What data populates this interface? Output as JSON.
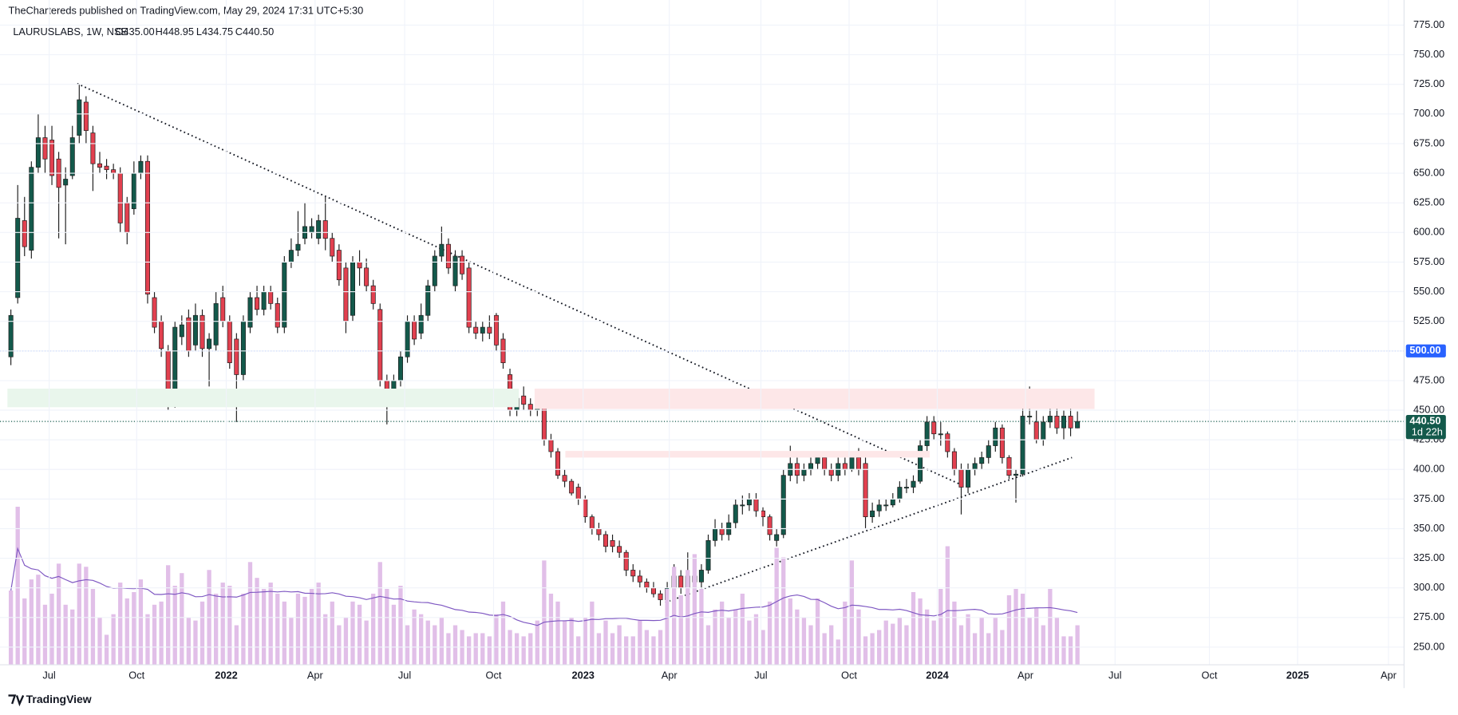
{
  "header": {
    "publisher": "TheChartereds published on TradingView.com, May 29, 2024 17:31 UTC+5:30",
    "symbol": "LAURUSLABS, 1W, NSE",
    "ohlc_labels": [
      "O435.00",
      "H448.95",
      "L434.75",
      "C440.50"
    ],
    "footer": "TradingView"
  },
  "chart_data": {
    "type": "candlestick",
    "xlim": [
      -0.5,
      203.5
    ],
    "xticks": [
      {
        "value": 5.6,
        "label": "Jul"
      },
      {
        "value": 18.4,
        "label": "Oct"
      },
      {
        "value": 31.5,
        "label": "2022"
      },
      {
        "value": 44.5,
        "label": "Apr"
      },
      {
        "value": 57.6,
        "label": "Jul"
      },
      {
        "value": 70.6,
        "label": "Oct"
      },
      {
        "value": 83.7,
        "label": "2023"
      },
      {
        "value": 96.3,
        "label": "Apr"
      },
      {
        "value": 109.7,
        "label": "Jul"
      },
      {
        "value": 122.6,
        "label": "Oct"
      },
      {
        "value": 135.5,
        "label": "2024"
      },
      {
        "value": 148.4,
        "label": "Apr"
      },
      {
        "value": 161.5,
        "label": "Jul"
      },
      {
        "value": 175.3,
        "label": "Oct"
      },
      {
        "value": 188.2,
        "label": "2025"
      },
      {
        "value": 201.5,
        "label": "Apr"
      }
    ],
    "ylim": [
      235.1,
      796.2
    ],
    "yticks": [
      {
        "value": 250,
        "label": "250.00"
      },
      {
        "value": 275,
        "label": "275.00"
      },
      {
        "value": 300,
        "label": "300.00"
      },
      {
        "value": 325,
        "label": "325.00"
      },
      {
        "value": 350,
        "label": "350.00"
      },
      {
        "value": 375,
        "label": "375.00"
      },
      {
        "value": 400,
        "label": "400.00"
      },
      {
        "value": 425,
        "label": "425.00"
      },
      {
        "value": 450,
        "label": "450.00"
      },
      {
        "value": 475,
        "label": "475.00"
      },
      {
        "value": 500,
        "label": "500.00"
      },
      {
        "value": 525,
        "label": "525.00"
      },
      {
        "value": 550,
        "label": "550.00"
      },
      {
        "value": 575,
        "label": "575.00"
      },
      {
        "value": 600,
        "label": "600.00"
      },
      {
        "value": 625,
        "label": "625.00"
      },
      {
        "value": 650,
        "label": "650.00"
      },
      {
        "value": 675,
        "label": "675.00"
      },
      {
        "value": 700,
        "label": "700.00"
      },
      {
        "value": 725,
        "label": "725.00"
      },
      {
        "value": 750,
        "label": "750.00"
      },
      {
        "value": 775,
        "label": "775.00"
      }
    ],
    "grid": true,
    "up_color": "#13594b",
    "down_color": "#e2404f",
    "volume_color": "#e1bfe8",
    "volume_ma_color": "#7e57c2",
    "candles": {
      "open": [
        495,
        545,
        610,
        585,
        655,
        680,
        678,
        662,
        640,
        648,
        682,
        710,
        684,
        658,
        656,
        653,
        650,
        625,
        620,
        650,
        660,
        545,
        525,
        500,
        458,
        512,
        528,
        505,
        530,
        502,
        505,
        545,
        525,
        510,
        480,
        520,
        545,
        535,
        550,
        540,
        520,
        575,
        585,
        595,
        600,
        595,
        610,
        595,
        585,
        570,
        530,
        575,
        570,
        555,
        535,
        475,
        462,
        475,
        495,
        525,
        515,
        530,
        555,
        580,
        590,
        555,
        580,
        570,
        520,
        515,
        520,
        530,
        510,
        480,
        450,
        462,
        455,
        450,
        455,
        425,
        415,
        395,
        390,
        385,
        375,
        360,
        350,
        345,
        340,
        335,
        330,
        315,
        310,
        305,
        300,
        295,
        290,
        300,
        310,
        300,
        310,
        305,
        315,
        340,
        350,
        345,
        355,
        370,
        370,
        375,
        365,
        360,
        340,
        345,
        395,
        405,
        395,
        400,
        405,
        410,
        400,
        395,
        405,
        400,
        410,
        405,
        360,
        365,
        370,
        370,
        375,
        385,
        385,
        390,
        420,
        440,
        430,
        430,
        415,
        400,
        385,
        400,
        405,
        410,
        420,
        435,
        410,
        395,
        396,
        445,
        440,
        425,
        440,
        445,
        435,
        445,
        435
      ],
      "high": [
        535,
        640,
        630,
        660,
        700,
        690,
        690,
        668,
        655,
        690,
        725,
        715,
        690,
        668,
        662,
        658,
        655,
        630,
        660,
        665,
        665,
        550,
        530,
        505,
        525,
        530,
        535,
        540,
        535,
        515,
        550,
        555,
        530,
        515,
        530,
        550,
        555,
        555,
        555,
        545,
        580,
        595,
        618,
        625,
        612,
        615,
        630,
        600,
        590,
        575,
        580,
        585,
        578,
        560,
        540,
        480,
        480,
        500,
        530,
        530,
        540,
        560,
        585,
        605,
        595,
        585,
        585,
        575,
        525,
        525,
        530,
        532,
        515,
        485,
        465,
        470,
        460,
        460,
        458,
        430,
        418,
        400,
        392,
        388,
        378,
        362,
        355,
        348,
        345,
        340,
        332,
        320,
        315,
        308,
        305,
        298,
        305,
        320,
        315,
        330,
        325,
        320,
        345,
        358,
        355,
        362,
        375,
        378,
        380,
        380,
        368,
        362,
        350,
        400,
        420,
        410,
        405,
        410,
        415,
        415,
        405,
        410,
        410,
        415,
        418,
        410,
        372,
        375,
        375,
        380,
        390,
        392,
        395,
        425,
        445,
        445,
        440,
        432,
        418,
        405,
        405,
        410,
        415,
        425,
        440,
        438,
        412,
        400,
        455,
        470,
        450,
        445,
        458,
        455,
        450,
        452,
        448.95
      ],
      "low": [
        488,
        540,
        580,
        578,
        650,
        650,
        640,
        595,
        590,
        645,
        675,
        675,
        635,
        650,
        645,
        645,
        600,
        590,
        615,
        645,
        540,
        515,
        495,
        450,
        452,
        505,
        495,
        500,
        495,
        470,
        500,
        520,
        485,
        440,
        475,
        515,
        530,
        530,
        535,
        515,
        515,
        570,
        580,
        590,
        595,
        590,
        585,
        575,
        555,
        515,
        525,
        555,
        550,
        535,
        470,
        438,
        455,
        470,
        490,
        505,
        510,
        525,
        550,
        575,
        565,
        550,
        560,
        515,
        510,
        508,
        510,
        500,
        485,
        445,
        445,
        450,
        445,
        445,
        420,
        410,
        392,
        385,
        378,
        370,
        355,
        345,
        340,
        330,
        330,
        325,
        310,
        305,
        300,
        296,
        292,
        285,
        288,
        295,
        295,
        280,
        300,
        300,
        312,
        335,
        340,
        340,
        350,
        362,
        365,
        360,
        352,
        340,
        335,
        342,
        390,
        388,
        390,
        395,
        400,
        395,
        390,
        390,
        395,
        398,
        395,
        350,
        355,
        360,
        365,
        368,
        372,
        380,
        380,
        388,
        415,
        425,
        420,
        410,
        395,
        362,
        380,
        395,
        400,
        405,
        415,
        405,
        392,
        372,
        394,
        438,
        422,
        420,
        435,
        430,
        425,
        428,
        434.75
      ],
      "close": [
        530,
        612,
        588,
        655,
        680,
        662,
        648,
        638,
        645,
        680,
        712,
        686,
        658,
        655,
        653,
        650,
        608,
        600,
        650,
        660,
        548,
        520,
        502,
        455,
        520,
        522,
        500,
        530,
        502,
        510,
        540,
        525,
        490,
        480,
        525,
        545,
        535,
        550,
        540,
        520,
        575,
        585,
        590,
        605,
        605,
        610,
        595,
        580,
        560,
        525,
        575,
        570,
        555,
        540,
        475,
        462,
        475,
        495,
        525,
        510,
        530,
        555,
        580,
        590,
        570,
        580,
        565,
        520,
        515,
        520,
        515,
        505,
        490,
        450,
        460,
        455,
        450,
        455,
        425,
        415,
        395,
        390,
        380,
        375,
        360,
        350,
        345,
        335,
        335,
        330,
        315,
        310,
        305,
        300,
        295,
        290,
        300,
        310,
        300,
        310,
        305,
        315,
        340,
        350,
        345,
        355,
        370,
        370,
        375,
        365,
        360,
        345,
        345,
        395,
        405,
        395,
        400,
        405,
        410,
        400,
        395,
        405,
        400,
        410,
        400,
        360,
        365,
        370,
        370,
        375,
        385,
        385,
        390,
        420,
        440,
        430,
        430,
        415,
        400,
        385,
        400,
        405,
        410,
        420,
        435,
        410,
        395,
        396,
        445,
        445,
        425,
        440,
        445,
        435,
        445,
        435,
        440.5
      ]
    },
    "volume": [
      47,
      100,
      42,
      54,
      57,
      38,
      45,
      64,
      38,
      35,
      64,
      62,
      48,
      30,
      19,
      32,
      52,
      42,
      46,
      54,
      32,
      38,
      40,
      63,
      50,
      58,
      30,
      28,
      40,
      60,
      45,
      52,
      50,
      25,
      45,
      65,
      55,
      48,
      52,
      45,
      40,
      30,
      45,
      43,
      48,
      52,
      32,
      40,
      25,
      30,
      40,
      38,
      28,
      45,
      65,
      48,
      38,
      50,
      25,
      35,
      32,
      28,
      25,
      30,
      20,
      25,
      22,
      18,
      20,
      20,
      18,
      32,
      40,
      22,
      20,
      18,
      20,
      28,
      66,
      45,
      40,
      28,
      30,
      18,
      30,
      40,
      20,
      28,
      20,
      25,
      18,
      18,
      28,
      22,
      18,
      22,
      48,
      62,
      44,
      60,
      70,
      48,
      25,
      35,
      40,
      30,
      35,
      45,
      28,
      32,
      22,
      40,
      74,
      68,
      42,
      35,
      30,
      25,
      42,
      20,
      25,
      16,
      40,
      66,
      35,
      18,
      20,
      22,
      28,
      26,
      30,
      25,
      46,
      42,
      35,
      28,
      48,
      75,
      40,
      25,
      32,
      20,
      30,
      20,
      30,
      22,
      44,
      48,
      45,
      30,
      36,
      25,
      48,
      30,
      18,
      18,
      25
    ],
    "volume_lim": [
      0,
      100
    ],
    "volume_ma_period": 20,
    "trendlines": [
      {
        "x": [
          9.7,
          139.2
        ],
        "price": [
          725.6,
          386.5
        ]
      },
      {
        "x": [
          95.7,
          155.2
        ],
        "price": [
          287.7,
          410
        ]
      }
    ],
    "zones": [
      {
        "color": "#e9f6ec",
        "x": [
          -0.5,
          74.3
        ],
        "price": [
          468.2,
          452.5
        ]
      },
      {
        "color": "#fde7e8",
        "x": [
          76.6,
          158.5
        ],
        "price": [
          468.2,
          451
        ]
      },
      {
        "color": "#fde7e8",
        "x": [
          81.1,
          134.4
        ],
        "price": [
          415.6,
          410
        ]
      }
    ],
    "hlines": [
      {
        "value": 500,
        "label": "500.00",
        "color": "#2962ff"
      },
      {
        "value": 440.5,
        "label": "440.50",
        "color": "#13594b",
        "countdown": "1d 22h"
      }
    ]
  }
}
